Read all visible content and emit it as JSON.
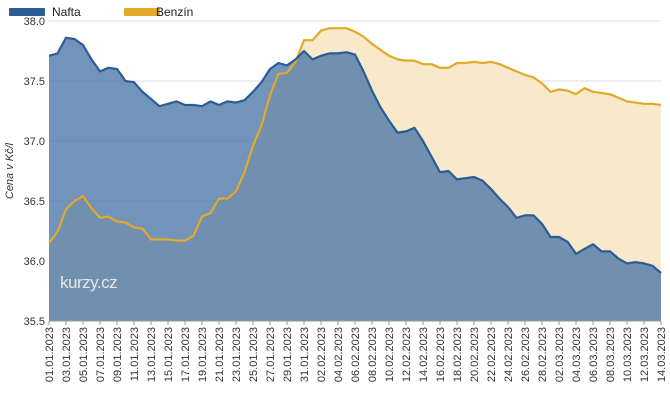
{
  "chart_data": {
    "type": "area",
    "ylabel": "Cena v Kč/l",
    "ylim": [
      35.5,
      38.0
    ],
    "yticks": [
      "35.5",
      "36.0",
      "36.5",
      "37.0",
      "37.5",
      "38.0"
    ],
    "grid": true,
    "legend_position": "top-left",
    "watermark": "kurzy.cz",
    "xticklabels": [
      "01.01.2023",
      "03.01.2023",
      "05.01.2023",
      "07.01.2023",
      "09.01.2023",
      "11.01.2023",
      "13.01.2023",
      "15.01.2023",
      "17.01.2023",
      "19.01.2023",
      "21.01.2023",
      "23.01.2023",
      "25.01.2023",
      "27.01.2023",
      "29.01.2023",
      "31.01.2023",
      "02.02.2023",
      "04.02.2023",
      "06.02.2023",
      "08.02.2023",
      "10.02.2023",
      "12.02.2023",
      "14.02.2023",
      "16.02.2023",
      "18.02.2023",
      "20.02.2023",
      "22.02.2023",
      "24.02.2023",
      "26.02.2023",
      "28.02.2023",
      "02.03.2023",
      "04.03.2023",
      "06.03.2023",
      "08.03.2023",
      "10.03.2023",
      "12.03.2023",
      "14.03.2023"
    ],
    "series": [
      {
        "name": "Nafta",
        "color": "#2b5c96",
        "fill": "#4a76a8",
        "values": [
          37.71,
          37.73,
          37.86,
          37.85,
          37.8,
          37.68,
          37.58,
          37.61,
          37.6,
          37.5,
          37.49,
          37.41,
          37.35,
          37.29,
          37.31,
          37.33,
          37.3,
          37.3,
          37.29,
          37.33,
          37.3,
          37.33,
          37.32,
          37.34,
          37.41,
          37.49,
          37.6,
          37.65,
          37.63,
          37.68,
          37.75,
          37.68,
          37.71,
          37.73,
          37.73,
          37.74,
          37.72,
          37.58,
          37.42,
          37.28,
          37.17,
          37.07,
          37.08,
          37.11,
          37.0,
          36.87,
          36.74,
          36.75,
          36.68,
          36.69,
          36.7,
          36.67,
          36.6,
          36.52,
          36.45,
          36.36,
          36.38,
          36.38,
          36.31,
          36.2,
          36.2,
          36.16,
          36.06,
          36.1,
          36.14,
          36.08,
          36.08,
          36.02,
          35.98,
          35.99,
          35.98,
          35.96,
          35.9
        ]
      },
      {
        "name": "Benzín",
        "color": "#e2a92a",
        "fill": "#f7e7c4",
        "values": [
          36.15,
          36.24,
          36.43,
          36.5,
          36.54,
          36.44,
          36.36,
          36.37,
          36.33,
          36.32,
          36.28,
          36.27,
          36.18,
          36.18,
          36.18,
          36.17,
          36.17,
          36.21,
          36.37,
          36.4,
          36.52,
          36.52,
          36.58,
          36.74,
          36.96,
          37.13,
          37.38,
          37.56,
          37.57,
          37.66,
          37.84,
          37.84,
          37.92,
          37.94,
          37.94,
          37.94,
          37.91,
          37.87,
          37.81,
          37.76,
          37.71,
          37.68,
          37.67,
          37.67,
          37.64,
          37.64,
          37.61,
          37.61,
          37.65,
          37.65,
          37.66,
          37.65,
          37.66,
          37.64,
          37.61,
          37.58,
          37.55,
          37.53,
          37.48,
          37.41,
          37.43,
          37.42,
          37.39,
          37.44,
          37.41,
          37.4,
          37.39,
          37.36,
          37.33,
          37.32,
          37.31,
          37.31,
          37.3
        ]
      }
    ]
  }
}
